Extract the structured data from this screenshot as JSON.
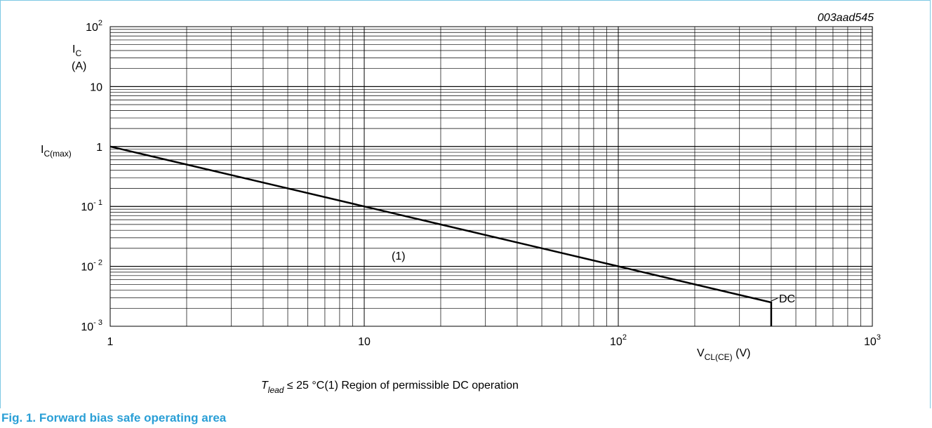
{
  "chart_data": {
    "type": "line",
    "figure_id": "003aad545",
    "x_scale": "log",
    "y_scale": "log",
    "xlim": [
      1,
      1000
    ],
    "ylim": [
      0.001,
      100
    ],
    "grid": true,
    "x_ticks": [
      {
        "value": 1,
        "base": "1",
        "exp": ""
      },
      {
        "value": 10,
        "base": "10",
        "exp": ""
      },
      {
        "value": 100,
        "base": "10",
        "exp": "2"
      },
      {
        "value": 1000,
        "base": "10",
        "exp": "3"
      }
    ],
    "y_ticks": [
      {
        "value": 100,
        "base": "10",
        "exp": "2"
      },
      {
        "value": 10,
        "base": "10",
        "exp": ""
      },
      {
        "value": 1,
        "base": "1",
        "exp": ""
      },
      {
        "value": 0.1,
        "base": "10",
        "exp": "- 1"
      },
      {
        "value": 0.01,
        "base": "10",
        "exp": "- 2"
      },
      {
        "value": 0.001,
        "base": "10",
        "exp": "- 3"
      }
    ],
    "ylabel_main": "I",
    "ylabel_sub": "C",
    "ylabel_unit": "(A)",
    "xlabel_main": "V",
    "xlabel_sub": "CL(CE)",
    "xlabel_unit": " (V)",
    "icmax_main": "I",
    "icmax_sub": "C(max)",
    "series": [
      {
        "name": "DC",
        "x": [
          1,
          400,
          400
        ],
        "y": [
          1,
          0.0025,
          0.001
        ]
      }
    ],
    "annotation_1": "(1)",
    "condition_t": "T",
    "condition_sub": "lead",
    "condition_text": " ≤ 25 °C",
    "note_mark": "(1)",
    "note_text": " Region of permissible DC operation"
  },
  "caption": "Fig. 1. Forward bias safe operating area",
  "colors": {
    "frame": "#7ec8e3",
    "caption": "#2a9fd6",
    "line": "#000000",
    "grid": "#000000"
  }
}
